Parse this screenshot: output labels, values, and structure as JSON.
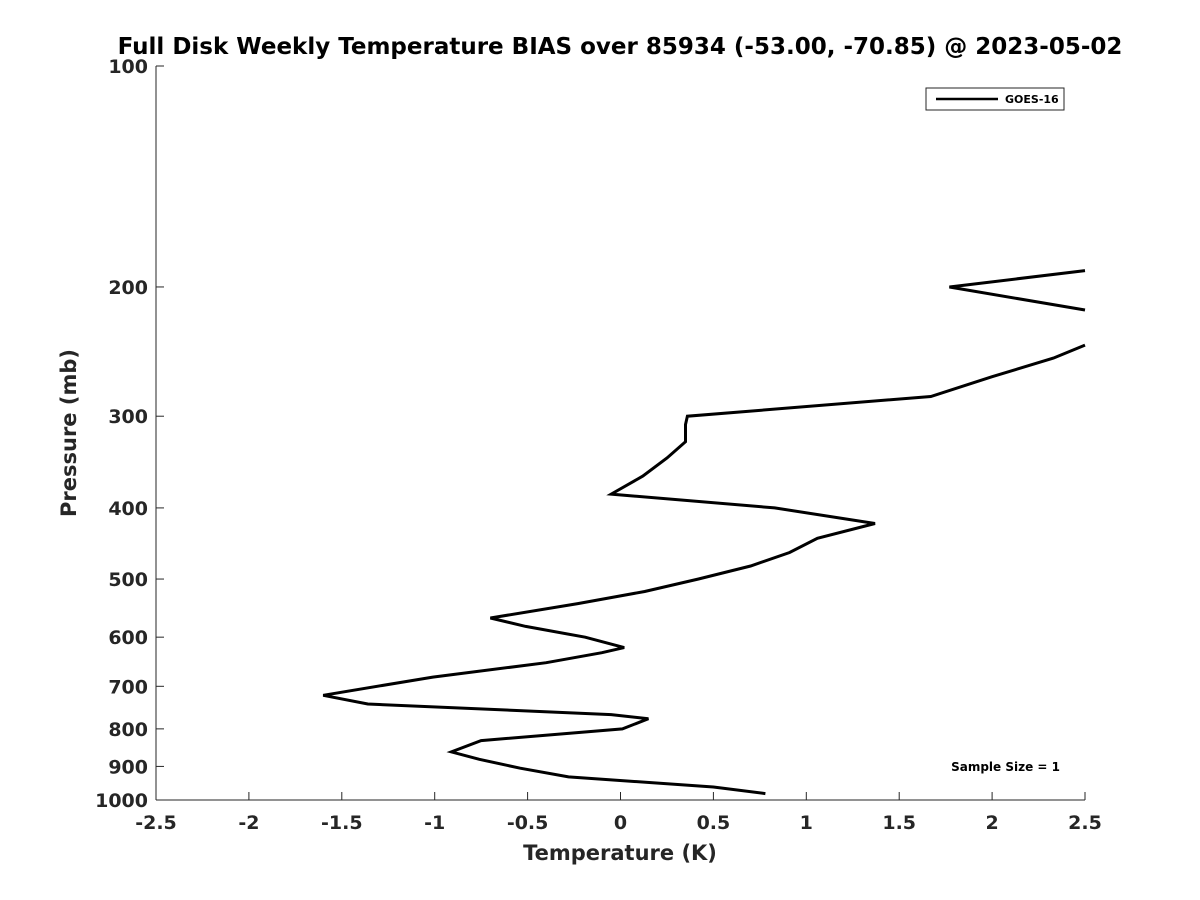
{
  "chart_data": {
    "type": "line",
    "title": "Full Disk Weekly Temperature BIAS over 85934 (-53.00, -70.85) @ 2023-05-02",
    "xlabel": "Temperature (K)",
    "ylabel": "Pressure (mb)",
    "xlim": [
      -2.5,
      2.5
    ],
    "ylim": [
      100,
      1000
    ],
    "y_scale": "log",
    "y_reversed": true,
    "grid": false,
    "x_ticks": [
      -2.5,
      -2,
      -1.5,
      -1,
      -0.5,
      0,
      0.5,
      1,
      1.5,
      2,
      2.5
    ],
    "x_tick_labels": [
      "-2.5",
      "-2",
      "-1.5",
      "-1",
      "-0.5",
      "0",
      "0.5",
      "1",
      "1.5",
      "2",
      "2.5"
    ],
    "y_ticks": [
      100,
      200,
      300,
      400,
      500,
      600,
      700,
      800,
      900,
      1000
    ],
    "y_tick_labels": [
      "100",
      "200",
      "300",
      "400",
      "500",
      "600",
      "700",
      "800",
      "900",
      "1000"
    ],
    "legend_position": "top-right",
    "annotation": "Sample Size = 1",
    "series": [
      {
        "name": "GOES-16",
        "color": "#000000",
        "segments": [
          {
            "x": [
              2.5,
              1.77,
              2.5
            ],
            "y": [
              190,
              200,
              215
            ]
          },
          {
            "x": [
              2.5,
              2.33,
              2.0,
              1.67,
              0.36,
              0.35,
              0.35,
              0.25,
              0.12,
              -0.05,
              0.83,
              1.37,
              1.06,
              0.91,
              0.7,
              0.42,
              0.13,
              -0.23,
              -0.7,
              -0.51,
              -0.19,
              0.02,
              -0.1,
              -0.4,
              -1.01,
              -1.6,
              -1.36,
              -0.05,
              0.15,
              0.01,
              -0.75,
              -0.91,
              -0.76,
              -0.54,
              -0.28,
              0.5,
              0.78
            ],
            "y": [
              240,
              250,
              265,
              282,
              300,
              308,
              325,
              342,
              362,
              383,
              400,
              420,
              440,
              460,
              480,
              500,
              520,
              540,
              565,
              580,
              600,
              620,
              630,
              650,
              680,
              720,
              740,
              765,
              775,
              800,
              830,
              860,
              880,
              905,
              930,
              960,
              980
            ]
          }
        ]
      }
    ]
  }
}
